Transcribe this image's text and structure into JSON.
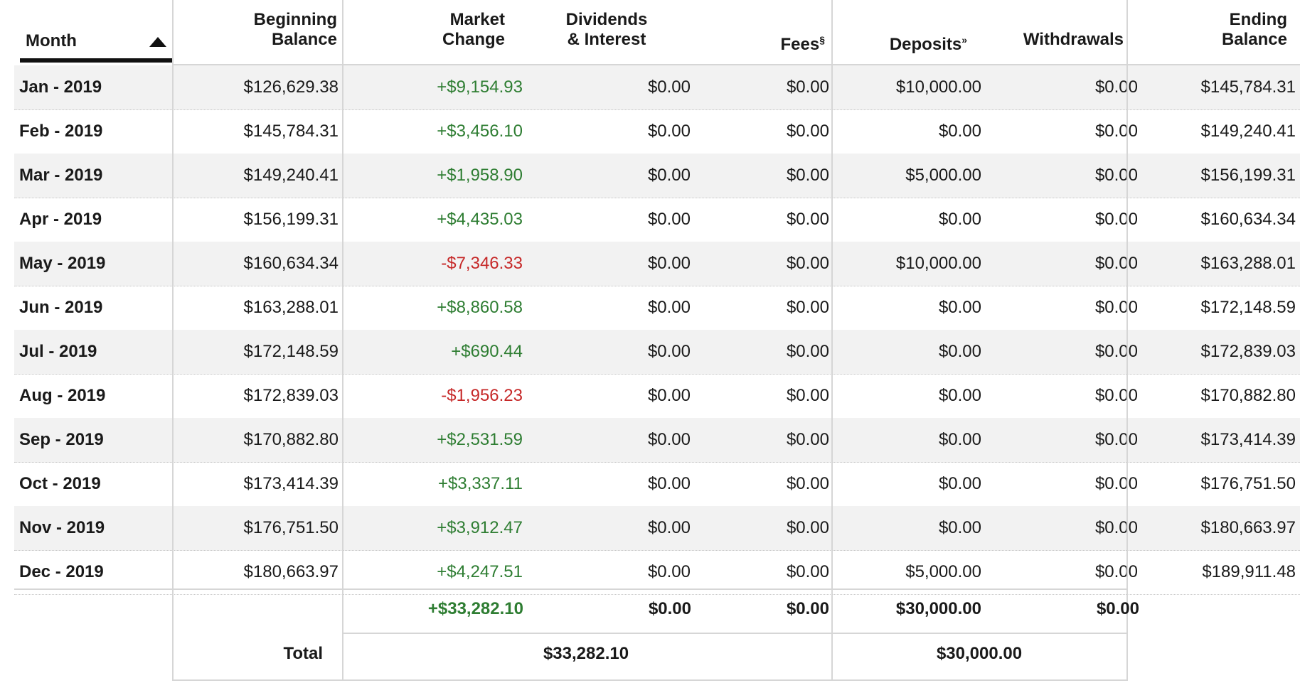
{
  "header": {
    "month": "Month",
    "beginning_balance_1": "Beginning",
    "beginning_balance_2": "Balance",
    "market_change_1": "Market",
    "market_change_2": "Change",
    "dividends_1": "Dividends",
    "dividends_2": "& Interest",
    "fees": "Fees",
    "fees_mark": "§",
    "deposits": "Deposits",
    "deposits_mark": "»",
    "withdrawals": "Withdrawals",
    "ending_balance_1": "Ending",
    "ending_balance_2": "Balance"
  },
  "rows": [
    {
      "month": "Jan - 2019",
      "beginning": "$126,629.38",
      "change": "+$9,154.93",
      "change_dir": "pos",
      "dividends": "$0.00",
      "fees": "$0.00",
      "deposits": "$10,000.00",
      "withdrawals": "$0.00",
      "ending": "$145,784.31"
    },
    {
      "month": "Feb - 2019",
      "beginning": "$145,784.31",
      "change": "+$3,456.10",
      "change_dir": "pos",
      "dividends": "$0.00",
      "fees": "$0.00",
      "deposits": "$0.00",
      "withdrawals": "$0.00",
      "ending": "$149,240.41"
    },
    {
      "month": "Mar - 2019",
      "beginning": "$149,240.41",
      "change": "+$1,958.90",
      "change_dir": "pos",
      "dividends": "$0.00",
      "fees": "$0.00",
      "deposits": "$5,000.00",
      "withdrawals": "$0.00",
      "ending": "$156,199.31"
    },
    {
      "month": "Apr - 2019",
      "beginning": "$156,199.31",
      "change": "+$4,435.03",
      "change_dir": "pos",
      "dividends": "$0.00",
      "fees": "$0.00",
      "deposits": "$0.00",
      "withdrawals": "$0.00",
      "ending": "$160,634.34"
    },
    {
      "month": "May - 2019",
      "beginning": "$160,634.34",
      "change": "-$7,346.33",
      "change_dir": "neg",
      "dividends": "$0.00",
      "fees": "$0.00",
      "deposits": "$10,000.00",
      "withdrawals": "$0.00",
      "ending": "$163,288.01"
    },
    {
      "month": "Jun - 2019",
      "beginning": "$163,288.01",
      "change": "+$8,860.58",
      "change_dir": "pos",
      "dividends": "$0.00",
      "fees": "$0.00",
      "deposits": "$0.00",
      "withdrawals": "$0.00",
      "ending": "$172,148.59"
    },
    {
      "month": "Jul - 2019",
      "beginning": "$172,148.59",
      "change": "+$690.44",
      "change_dir": "pos",
      "dividends": "$0.00",
      "fees": "$0.00",
      "deposits": "$0.00",
      "withdrawals": "$0.00",
      "ending": "$172,839.03"
    },
    {
      "month": "Aug - 2019",
      "beginning": "$172,839.03",
      "change": "-$1,956.23",
      "change_dir": "neg",
      "dividends": "$0.00",
      "fees": "$0.00",
      "deposits": "$0.00",
      "withdrawals": "$0.00",
      "ending": "$170,882.80"
    },
    {
      "month": "Sep - 2019",
      "beginning": "$170,882.80",
      "change": "+$2,531.59",
      "change_dir": "pos",
      "dividends": "$0.00",
      "fees": "$0.00",
      "deposits": "$0.00",
      "withdrawals": "$0.00",
      "ending": "$173,414.39"
    },
    {
      "month": "Oct - 2019",
      "beginning": "$173,414.39",
      "change": "+$3,337.11",
      "change_dir": "pos",
      "dividends": "$0.00",
      "fees": "$0.00",
      "deposits": "$0.00",
      "withdrawals": "$0.00",
      "ending": "$176,751.50"
    },
    {
      "month": "Nov - 2019",
      "beginning": "$176,751.50",
      "change": "+$3,912.47",
      "change_dir": "pos",
      "dividends": "$0.00",
      "fees": "$0.00",
      "deposits": "$0.00",
      "withdrawals": "$0.00",
      "ending": "$180,663.97"
    },
    {
      "month": "Dec - 2019",
      "beginning": "$180,663.97",
      "change": "+$4,247.51",
      "change_dir": "pos",
      "dividends": "$0.00",
      "fees": "$0.00",
      "deposits": "$5,000.00",
      "withdrawals": "$0.00",
      "ending": "$189,911.48"
    }
  ],
  "totals": {
    "market_change": "+$33,282.10",
    "dividends": "$0.00",
    "fees": "$0.00",
    "deposits": "$30,000.00",
    "withdrawals": "$0.00",
    "label": "Total",
    "combined_change": "$33,282.10",
    "combined_flows": "$30,000.00"
  },
  "colors": {
    "positive": "#2e7d32",
    "negative": "#c62828",
    "row_shade": "#f2f2f2"
  }
}
